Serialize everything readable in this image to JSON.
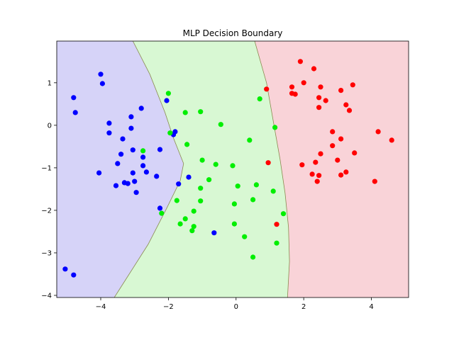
{
  "chart_data": {
    "type": "scatter",
    "title": "MLP Decision Boundary",
    "xlabel": "",
    "ylabel": "",
    "xlim": [
      -5.3,
      5.1
    ],
    "ylim": [
      -4.05,
      1.98
    ],
    "x_ticks": [
      -4,
      -2,
      0,
      2,
      4
    ],
    "y_ticks": [
      1,
      0,
      -1,
      -2,
      -3,
      -4
    ],
    "grid": false,
    "colors": {
      "region_blue": "#d6d3f8",
      "region_green": "#d8f8d3",
      "region_red": "#f9d3d8",
      "boundary": "#8a8a50",
      "class_blue": "#0000ff",
      "class_green": "#00ee00",
      "class_red": "#ff0000"
    },
    "boundaries": {
      "blue_green": [
        [
          -3.05,
          1.98
        ],
        [
          -2.55,
          1.2
        ],
        [
          -2.1,
          0.3
        ],
        [
          -1.85,
          -0.3
        ],
        [
          -1.55,
          -0.9
        ],
        [
          -1.65,
          -1.3
        ],
        [
          -2.05,
          -1.95
        ],
        [
          -2.6,
          -2.8
        ],
        [
          -3.2,
          -3.55
        ],
        [
          -3.6,
          -4.05
        ]
      ],
      "green_red": [
        [
          0.55,
          1.98
        ],
        [
          0.9,
          1.0
        ],
        [
          1.1,
          0.1
        ],
        [
          1.3,
          -0.8
        ],
        [
          1.45,
          -1.6
        ],
        [
          1.55,
          -2.4
        ],
        [
          1.58,
          -3.2
        ],
        [
          1.52,
          -4.05
        ]
      ]
    },
    "series": [
      {
        "color": "blue",
        "points": [
          [
            -4.8,
            0.65
          ],
          [
            -4.75,
            0.3
          ],
          [
            -4.0,
            1.2
          ],
          [
            -3.95,
            0.98
          ],
          [
            -3.75,
            0.05
          ],
          [
            -3.75,
            -0.18
          ],
          [
            -3.55,
            -1.42
          ],
          [
            -3.5,
            -0.9
          ],
          [
            -3.4,
            -0.68
          ],
          [
            -3.35,
            -0.32
          ],
          [
            -3.3,
            -1.35
          ],
          [
            -3.2,
            -1.37
          ],
          [
            -3.1,
            0.2
          ],
          [
            -3.1,
            -0.07
          ],
          [
            -3.05,
            -0.58
          ],
          [
            -3.05,
            -1.12
          ],
          [
            -3.0,
            -1.32
          ],
          [
            -2.95,
            -1.58
          ],
          [
            -2.8,
            0.4
          ],
          [
            -2.75,
            -0.75
          ],
          [
            -2.75,
            -0.95
          ],
          [
            -2.65,
            -1.1
          ],
          [
            -2.35,
            -1.2
          ],
          [
            -2.25,
            -0.57
          ],
          [
            -2.25,
            -1.95
          ],
          [
            -2.05,
            0.58
          ],
          [
            -1.85,
            -0.22
          ],
          [
            -1.8,
            -0.15
          ],
          [
            -1.7,
            -1.38
          ],
          [
            -1.4,
            -1.22
          ],
          [
            -0.65,
            -2.53
          ],
          [
            -4.05,
            -1.12
          ],
          [
            -5.05,
            -3.38
          ],
          [
            -4.8,
            -3.52
          ]
        ]
      },
      {
        "color": "green",
        "points": [
          [
            -2.75,
            -0.6
          ],
          [
            -2.0,
            0.75
          ],
          [
            -1.95,
            -0.18
          ],
          [
            -1.5,
            0.3
          ],
          [
            -1.45,
            -0.45
          ],
          [
            -1.05,
            0.32
          ],
          [
            -1.0,
            -0.82
          ],
          [
            -0.45,
            0.02
          ],
          [
            -0.6,
            -0.92
          ],
          [
            -0.8,
            -1.28
          ],
          [
            -1.05,
            -1.48
          ],
          [
            -1.05,
            -1.78
          ],
          [
            -1.25,
            -2.02
          ],
          [
            -1.5,
            -2.2
          ],
          [
            -1.65,
            -2.32
          ],
          [
            -1.75,
            -1.77
          ],
          [
            -1.25,
            -2.38
          ],
          [
            -1.3,
            -2.48
          ],
          [
            -2.2,
            -2.07
          ],
          [
            0.4,
            -0.35
          ],
          [
            0.7,
            0.62
          ],
          [
            1.15,
            -0.05
          ],
          [
            -0.1,
            -0.95
          ],
          [
            0.05,
            -1.43
          ],
          [
            -0.05,
            -1.85
          ],
          [
            0.6,
            -1.4
          ],
          [
            0.5,
            -1.75
          ],
          [
            1.1,
            -1.55
          ],
          [
            1.4,
            -2.08
          ],
          [
            -0.05,
            -2.32
          ],
          [
            0.25,
            -2.62
          ],
          [
            1.2,
            -2.77
          ],
          [
            0.5,
            -3.1
          ]
        ]
      },
      {
        "color": "red",
        "points": [
          [
            0.9,
            0.85
          ],
          [
            1.65,
            0.9
          ],
          [
            1.65,
            0.75
          ],
          [
            1.75,
            0.73
          ],
          [
            1.9,
            1.5
          ],
          [
            2.0,
            1.0
          ],
          [
            2.3,
            1.33
          ],
          [
            2.45,
            0.65
          ],
          [
            2.45,
            0.42
          ],
          [
            2.5,
            0.9
          ],
          [
            2.65,
            0.58
          ],
          [
            2.85,
            -0.15
          ],
          [
            2.85,
            -0.48
          ],
          [
            3.1,
            0.82
          ],
          [
            3.1,
            -0.32
          ],
          [
            3.25,
            0.48
          ],
          [
            3.35,
            0.35
          ],
          [
            3.45,
            0.95
          ],
          [
            3.5,
            -0.65
          ],
          [
            4.2,
            -0.15
          ],
          [
            4.6,
            -0.35
          ],
          [
            2.5,
            -0.67
          ],
          [
            2.35,
            -0.87
          ],
          [
            1.95,
            -0.93
          ],
          [
            2.25,
            -1.15
          ],
          [
            2.45,
            -1.18
          ],
          [
            2.4,
            -1.32
          ],
          [
            3.0,
            -0.82
          ],
          [
            3.1,
            -1.17
          ],
          [
            3.25,
            -1.1
          ],
          [
            4.1,
            -1.32
          ],
          [
            0.95,
            -0.88
          ],
          [
            1.2,
            -2.33
          ]
        ]
      }
    ]
  }
}
